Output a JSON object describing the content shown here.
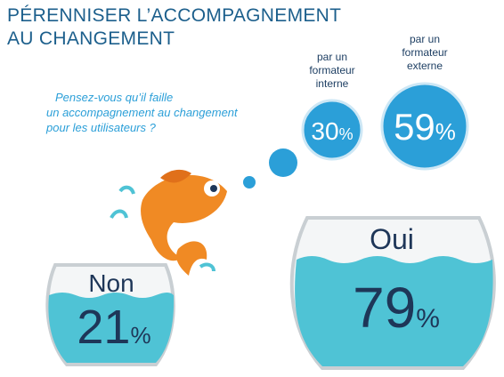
{
  "title": [
    "PÉRENNISER L’ACCOMPAGNEMENT",
    "AU CHANGEMENT"
  ],
  "question": [
    "Pensez-vous qu’il faille",
    "un accompagnement au changement",
    "pour les utilisateurs ?"
  ],
  "bowls": [
    {
      "label": "Non",
      "value": 21,
      "unit": "%"
    },
    {
      "label": "Oui",
      "value": 79,
      "unit": "%"
    }
  ],
  "bubbles": [
    {
      "label": [
        "par un",
        "formateur",
        "interne"
      ],
      "value": 30,
      "unit": "%"
    },
    {
      "label": [
        "par un",
        "formateur",
        "externe"
      ],
      "value": 59,
      "unit": "%"
    }
  ]
}
